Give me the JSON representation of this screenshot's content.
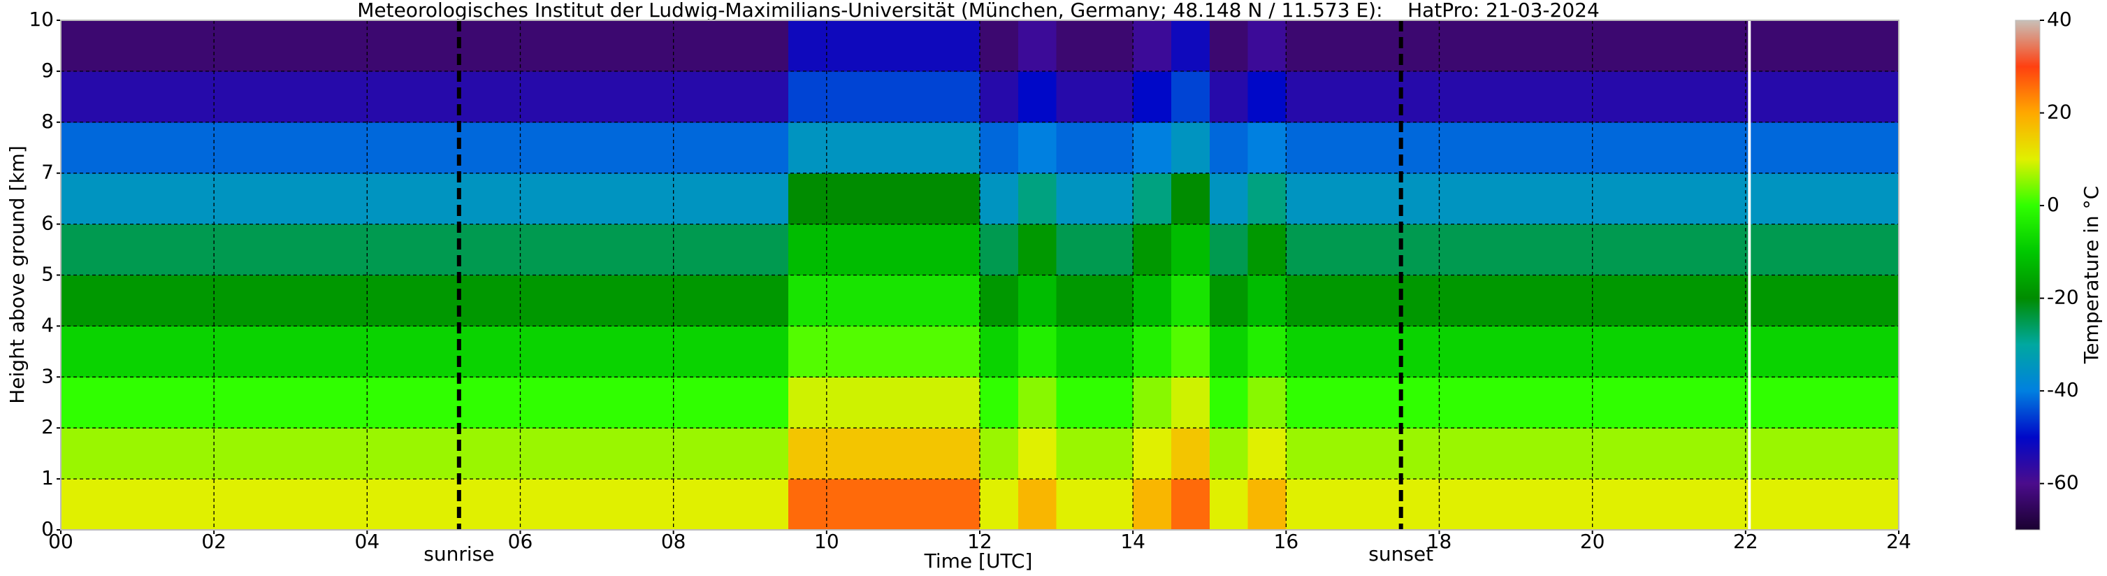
{
  "chart_data": {
    "type": "heatmap",
    "title": "Meteorologisches Institut der Ludwig-Maximilians-Universität (München, Germany; 48.148 N / 11.573 E):    HatPro: 21-03-2024",
    "x_label": "Time [UTC]",
    "y_label": "Height above ground [km]",
    "colorbar_label": "Temperature in °C",
    "xlim": [
      0,
      24
    ],
    "ylim": [
      0,
      10
    ],
    "clim": [
      -70,
      40
    ],
    "xticks": [
      {
        "value": 0,
        "label": "00"
      },
      {
        "value": 2,
        "label": "02"
      },
      {
        "value": 4,
        "label": "04"
      },
      {
        "value": 6,
        "label": "06"
      },
      {
        "value": 8,
        "label": "08"
      },
      {
        "value": 10,
        "label": "10"
      },
      {
        "value": 12,
        "label": "12"
      },
      {
        "value": 14,
        "label": "14"
      },
      {
        "value": 16,
        "label": "16"
      },
      {
        "value": 18,
        "label": "18"
      },
      {
        "value": 20,
        "label": "20"
      },
      {
        "value": 22,
        "label": "22"
      },
      {
        "value": 24,
        "label": "24"
      }
    ],
    "yticks": [
      0,
      1,
      2,
      3,
      4,
      5,
      6,
      7,
      8,
      9,
      10
    ],
    "cticks": [
      -60,
      -40,
      -20,
      0,
      20,
      40
    ],
    "grid": true,
    "colorscale": [
      "#1a0030",
      "#4b0c8c",
      "#0008c8",
      "#0080e0",
      "#00a8a0",
      "#008c00",
      "#00c800",
      "#30ff00",
      "#e0f000",
      "#ffa800",
      "#ff4010",
      "#c8c0b8"
    ],
    "x_bin_width": 0.5,
    "y_bin_height": 1,
    "z": [
      [
        10,
        10,
        10,
        10,
        10,
        10,
        10,
        10,
        10,
        10,
        10,
        10,
        10,
        10,
        10,
        10,
        10,
        10,
        10,
        26,
        26,
        26,
        26,
        26,
        10,
        18,
        10,
        10,
        18,
        26,
        10,
        18,
        10,
        10,
        10,
        10,
        10,
        10,
        10,
        10,
        10,
        10,
        10,
        10,
        10,
        10,
        10,
        10
      ],
      [
        6,
        6,
        6,
        6,
        6,
        6,
        6,
        6,
        6,
        6,
        6,
        6,
        6,
        6,
        6,
        6,
        6,
        6,
        6,
        16,
        16,
        16,
        16,
        16,
        6,
        10,
        6,
        6,
        10,
        16,
        6,
        10,
        6,
        6,
        6,
        6,
        6,
        6,
        6,
        6,
        6,
        6,
        6,
        6,
        6,
        6,
        6,
        6
      ],
      [
        0,
        0,
        0,
        0,
        0,
        0,
        0,
        0,
        0,
        0,
        0,
        0,
        0,
        0,
        0,
        0,
        0,
        0,
        0,
        9,
        9,
        9,
        9,
        9,
        0,
        5,
        0,
        0,
        5,
        9,
        0,
        5,
        0,
        0,
        0,
        0,
        0,
        0,
        0,
        0,
        0,
        0,
        0,
        0,
        0,
        0,
        0,
        0
      ],
      [
        -8,
        -8,
        -8,
        -8,
        -8,
        -8,
        -8,
        -8,
        -8,
        -8,
        -8,
        -8,
        -8,
        -8,
        -8,
        -8,
        -8,
        -8,
        -8,
        2,
        2,
        2,
        2,
        2,
        -8,
        -3,
        -8,
        -8,
        -3,
        2,
        -8,
        -3,
        -8,
        -8,
        -8,
        -8,
        -8,
        -8,
        -8,
        -8,
        -8,
        -8,
        -8,
        -8,
        -8,
        -8,
        -8,
        -8
      ],
      [
        -18,
        -18,
        -18,
        -18,
        -18,
        -18,
        -18,
        -18,
        -18,
        -18,
        -18,
        -18,
        -18,
        -18,
        -18,
        -18,
        -18,
        -18,
        -18,
        -5,
        -5,
        -5,
        -5,
        -5,
        -18,
        -12,
        -18,
        -18,
        -12,
        -5,
        -18,
        -12,
        -18,
        -18,
        -18,
        -18,
        -18,
        -18,
        -18,
        -18,
        -18,
        -18,
        -18,
        -18,
        -18,
        -18,
        -18,
        -18
      ],
      [
        -25,
        -25,
        -25,
        -25,
        -25,
        -25,
        -25,
        -25,
        -25,
        -25,
        -25,
        -25,
        -25,
        -25,
        -25,
        -25,
        -25,
        -25,
        -25,
        -12,
        -12,
        -12,
        -12,
        -12,
        -25,
        -18,
        -25,
        -25,
        -18,
        -12,
        -25,
        -18,
        -25,
        -25,
        -25,
        -25,
        -25,
        -25,
        -25,
        -25,
        -25,
        -25,
        -25,
        -25,
        -25,
        -25,
        -25,
        -25
      ],
      [
        -35,
        -35,
        -35,
        -35,
        -35,
        -35,
        -35,
        -35,
        -35,
        -35,
        -35,
        -35,
        -35,
        -35,
        -35,
        -35,
        -35,
        -35,
        -35,
        -20,
        -20,
        -20,
        -20,
        -20,
        -35,
        -28,
        -35,
        -35,
        -28,
        -20,
        -35,
        -28,
        -35,
        -35,
        -35,
        -35,
        -35,
        -35,
        -35,
        -35,
        -35,
        -35,
        -35,
        -35,
        -35,
        -35,
        -35,
        -35
      ],
      [
        -42,
        -42,
        -42,
        -42,
        -42,
        -42,
        -42,
        -42,
        -42,
        -42,
        -42,
        -42,
        -42,
        -42,
        -42,
        -42,
        -42,
        -42,
        -42,
        -35,
        -35,
        -35,
        -35,
        -35,
        -42,
        -40,
        -42,
        -42,
        -40,
        -35,
        -42,
        -40,
        -42,
        -42,
        -42,
        -42,
        -42,
        -42,
        -42,
        -42,
        -42,
        -42,
        -42,
        -42,
        -42,
        -42,
        -42,
        -42
      ],
      [
        -55,
        -55,
        -55,
        -55,
        -55,
        -55,
        -55,
        -55,
        -55,
        -55,
        -55,
        -55,
        -55,
        -55,
        -55,
        -55,
        -55,
        -55,
        -55,
        -45,
        -45,
        -45,
        -45,
        -45,
        -55,
        -50,
        -55,
        -55,
        -50,
        -45,
        -55,
        -50,
        -55,
        -55,
        -55,
        -55,
        -55,
        -55,
        -55,
        -55,
        -55,
        -55,
        -55,
        -55,
        -55,
        -55,
        -55,
        -55
      ],
      [
        -63,
        -63,
        -63,
        -63,
        -63,
        -63,
        -63,
        -63,
        -63,
        -63,
        -63,
        -63,
        -63,
        -63,
        -63,
        -63,
        -63,
        -63,
        -63,
        -52,
        -52,
        -52,
        -52,
        -52,
        -63,
        -58,
        -63,
        -63,
        -58,
        -52,
        -63,
        -58,
        -63,
        -63,
        -63,
        -63,
        -63,
        -63,
        -63,
        -63,
        -63,
        -63,
        -63,
        -63,
        -63,
        -63,
        -63,
        -63
      ]
    ],
    "annotations": [
      {
        "text": "sunrise",
        "x": 5.2
      },
      {
        "text": "sunset",
        "x": 17.5
      }
    ],
    "vlines": [
      {
        "x": 22.05,
        "color": "#ffffff"
      }
    ]
  }
}
